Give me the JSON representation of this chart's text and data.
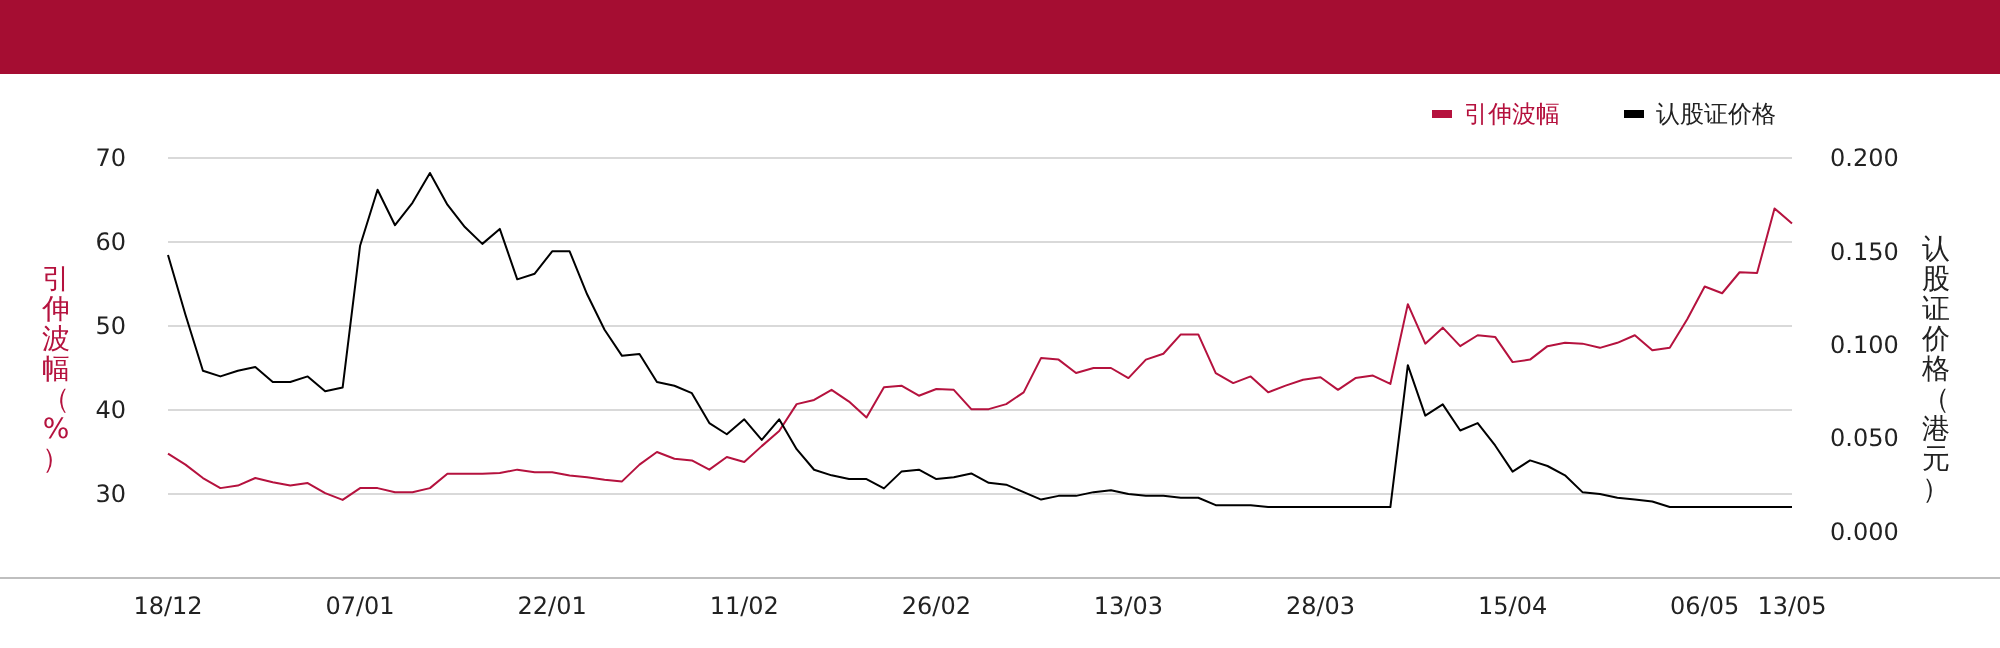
{
  "chart_data": {
    "type": "line",
    "categories": [
      "18/12",
      null,
      null,
      null,
      null,
      null,
      null,
      null,
      null,
      null,
      null,
      "07/01",
      null,
      null,
      null,
      null,
      null,
      null,
      null,
      null,
      null,
      null,
      "22/01",
      null,
      null,
      null,
      null,
      null,
      null,
      null,
      null,
      null,
      null,
      "11/02",
      null,
      null,
      null,
      null,
      null,
      null,
      null,
      null,
      null,
      null,
      "26/02",
      null,
      null,
      null,
      null,
      null,
      null,
      null,
      null,
      null,
      null,
      "13/03",
      null,
      null,
      null,
      null,
      null,
      null,
      null,
      null,
      null,
      null,
      "28/03",
      null,
      null,
      null,
      null,
      null,
      null,
      null,
      null,
      null,
      null,
      "15/04",
      null,
      null,
      null,
      null,
      null,
      null,
      null,
      null,
      null,
      null,
      "06/05",
      null,
      null,
      null,
      null,
      "13/05"
    ],
    "series": [
      {
        "name": "引伸波幅",
        "color": "#b5123e",
        "values": [
          34.8,
          33.5,
          31.9,
          30.7,
          31.0,
          31.9,
          31.4,
          31.0,
          31.3,
          30.1,
          29.3,
          30.7,
          30.7,
          30.2,
          30.2,
          30.7,
          32.4,
          32.4,
          32.4,
          32.5,
          32.9,
          32.6,
          32.6,
          32.2,
          32.0,
          31.7,
          31.5,
          33.5,
          35.0,
          34.2,
          34.0,
          32.9,
          34.4,
          33.8,
          35.7,
          37.5,
          40.7,
          41.2,
          42.4,
          41.0,
          39.1,
          42.7,
          42.9,
          41.7,
          42.5,
          42.4,
          40.1,
          40.1,
          40.7,
          42.1,
          46.2,
          46.0,
          44.4,
          45.0,
          45.0,
          43.8,
          46.0,
          46.7,
          49.0,
          49.0,
          44.4,
          43.2,
          44.0,
          42.1,
          42.9,
          43.6,
          43.9,
          42.4,
          43.8,
          44.1,
          43.1,
          52.6,
          47.9,
          49.8,
          47.6,
          48.9,
          48.7,
          45.7,
          46.0,
          47.6,
          48.0,
          47.9,
          47.4,
          48.0,
          48.9,
          47.1,
          47.4,
          50.8,
          54.7,
          53.9,
          56.4,
          56.3,
          64.0,
          62.2
        ]
      },
      {
        "name": "认股证价格",
        "color": "#000000",
        "axis": "y2",
        "values": [
          0.148,
          0.116,
          0.086,
          0.083,
          0.086,
          0.088,
          0.08,
          0.08,
          0.083,
          0.075,
          0.077,
          0.153,
          0.183,
          0.164,
          0.176,
          0.192,
          0.175,
          0.163,
          0.154,
          0.162,
          0.135,
          0.138,
          0.15,
          0.15,
          0.127,
          0.108,
          0.094,
          0.095,
          0.08,
          0.078,
          0.074,
          0.058,
          0.052,
          0.06,
          0.049,
          0.06,
          0.044,
          0.033,
          0.03,
          0.028,
          0.028,
          0.023,
          0.032,
          0.033,
          0.028,
          0.029,
          0.031,
          0.026,
          0.025,
          0.021,
          0.017,
          0.019,
          0.019,
          0.021,
          0.022,
          0.02,
          0.019,
          0.019,
          0.018,
          0.018,
          0.014,
          0.014,
          0.014,
          0.013,
          0.013,
          0.013,
          0.013,
          0.013,
          0.013,
          0.013,
          0.013,
          0.089,
          0.062,
          0.068,
          0.054,
          0.058,
          0.046,
          0.032,
          0.038,
          0.035,
          0.03,
          0.021,
          0.02,
          0.018,
          0.017,
          0.016,
          0.013,
          0.013,
          0.013,
          0.013,
          0.013,
          0.013,
          0.013,
          0.013
        ]
      }
    ],
    "ylabel": "引伸波幅（%）",
    "y2label": "认股证价格（港元）",
    "ylim": [
      20,
      70
    ],
    "yticks": [
      30,
      40,
      50,
      60,
      70
    ],
    "y2lim": [
      -0.025,
      0.2
    ],
    "y2ticks": [
      {
        "value": 0,
        "label": "0.000"
      },
      {
        "value": 0.05,
        "label": "0.050"
      },
      {
        "value": 0.1,
        "label": "0.100"
      },
      {
        "value": 0.15,
        "label": "0.150"
      },
      {
        "value": 0.2,
        "label": "0.200"
      }
    ],
    "grid": "y",
    "legend": "top right"
  }
}
